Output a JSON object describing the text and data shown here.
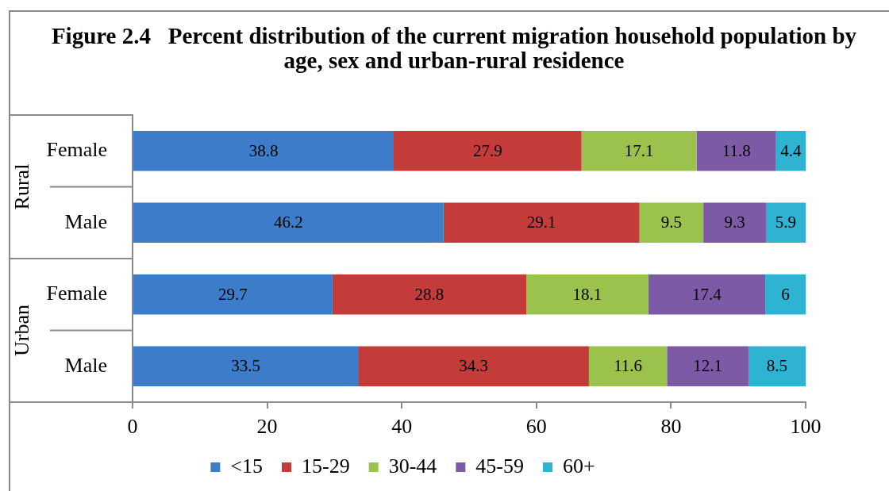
{
  "chart_data": {
    "type": "bar",
    "orientation": "horizontal",
    "stacked": true,
    "title": "Figure 2.4   Percent distribution of the current migration household population by age, sex and urban-rural residence",
    "categories": [
      "Female",
      "Male",
      "Female",
      "Male"
    ],
    "series": [
      {
        "name": "<15",
        "color": "#3d7cc9",
        "values": [
          38.8,
          46.2,
          29.7,
          33.5
        ]
      },
      {
        "name": "15-29",
        "color": "#c43c3a",
        "values": [
          27.9,
          29.1,
          28.8,
          34.3
        ]
      },
      {
        "name": "30-44",
        "color": "#9ac24d",
        "values": [
          17.1,
          9.5,
          18.1,
          11.6
        ]
      },
      {
        "name": "45-59",
        "color": "#7d5aa6",
        "values": [
          11.8,
          9.3,
          17.4,
          12.1
        ]
      },
      {
        "name": "60+",
        "color": "#2eb3d3",
        "values": [
          4.4,
          5.9,
          6,
          8.5
        ]
      }
    ],
    "xlim": [
      0,
      100
    ],
    "xticks": [
      0,
      20,
      40,
      60,
      80,
      100
    ],
    "grid": false,
    "legend": "bottom",
    "data_labels": true,
    "annotations": [
      "Rural",
      "Urban"
    ]
  }
}
